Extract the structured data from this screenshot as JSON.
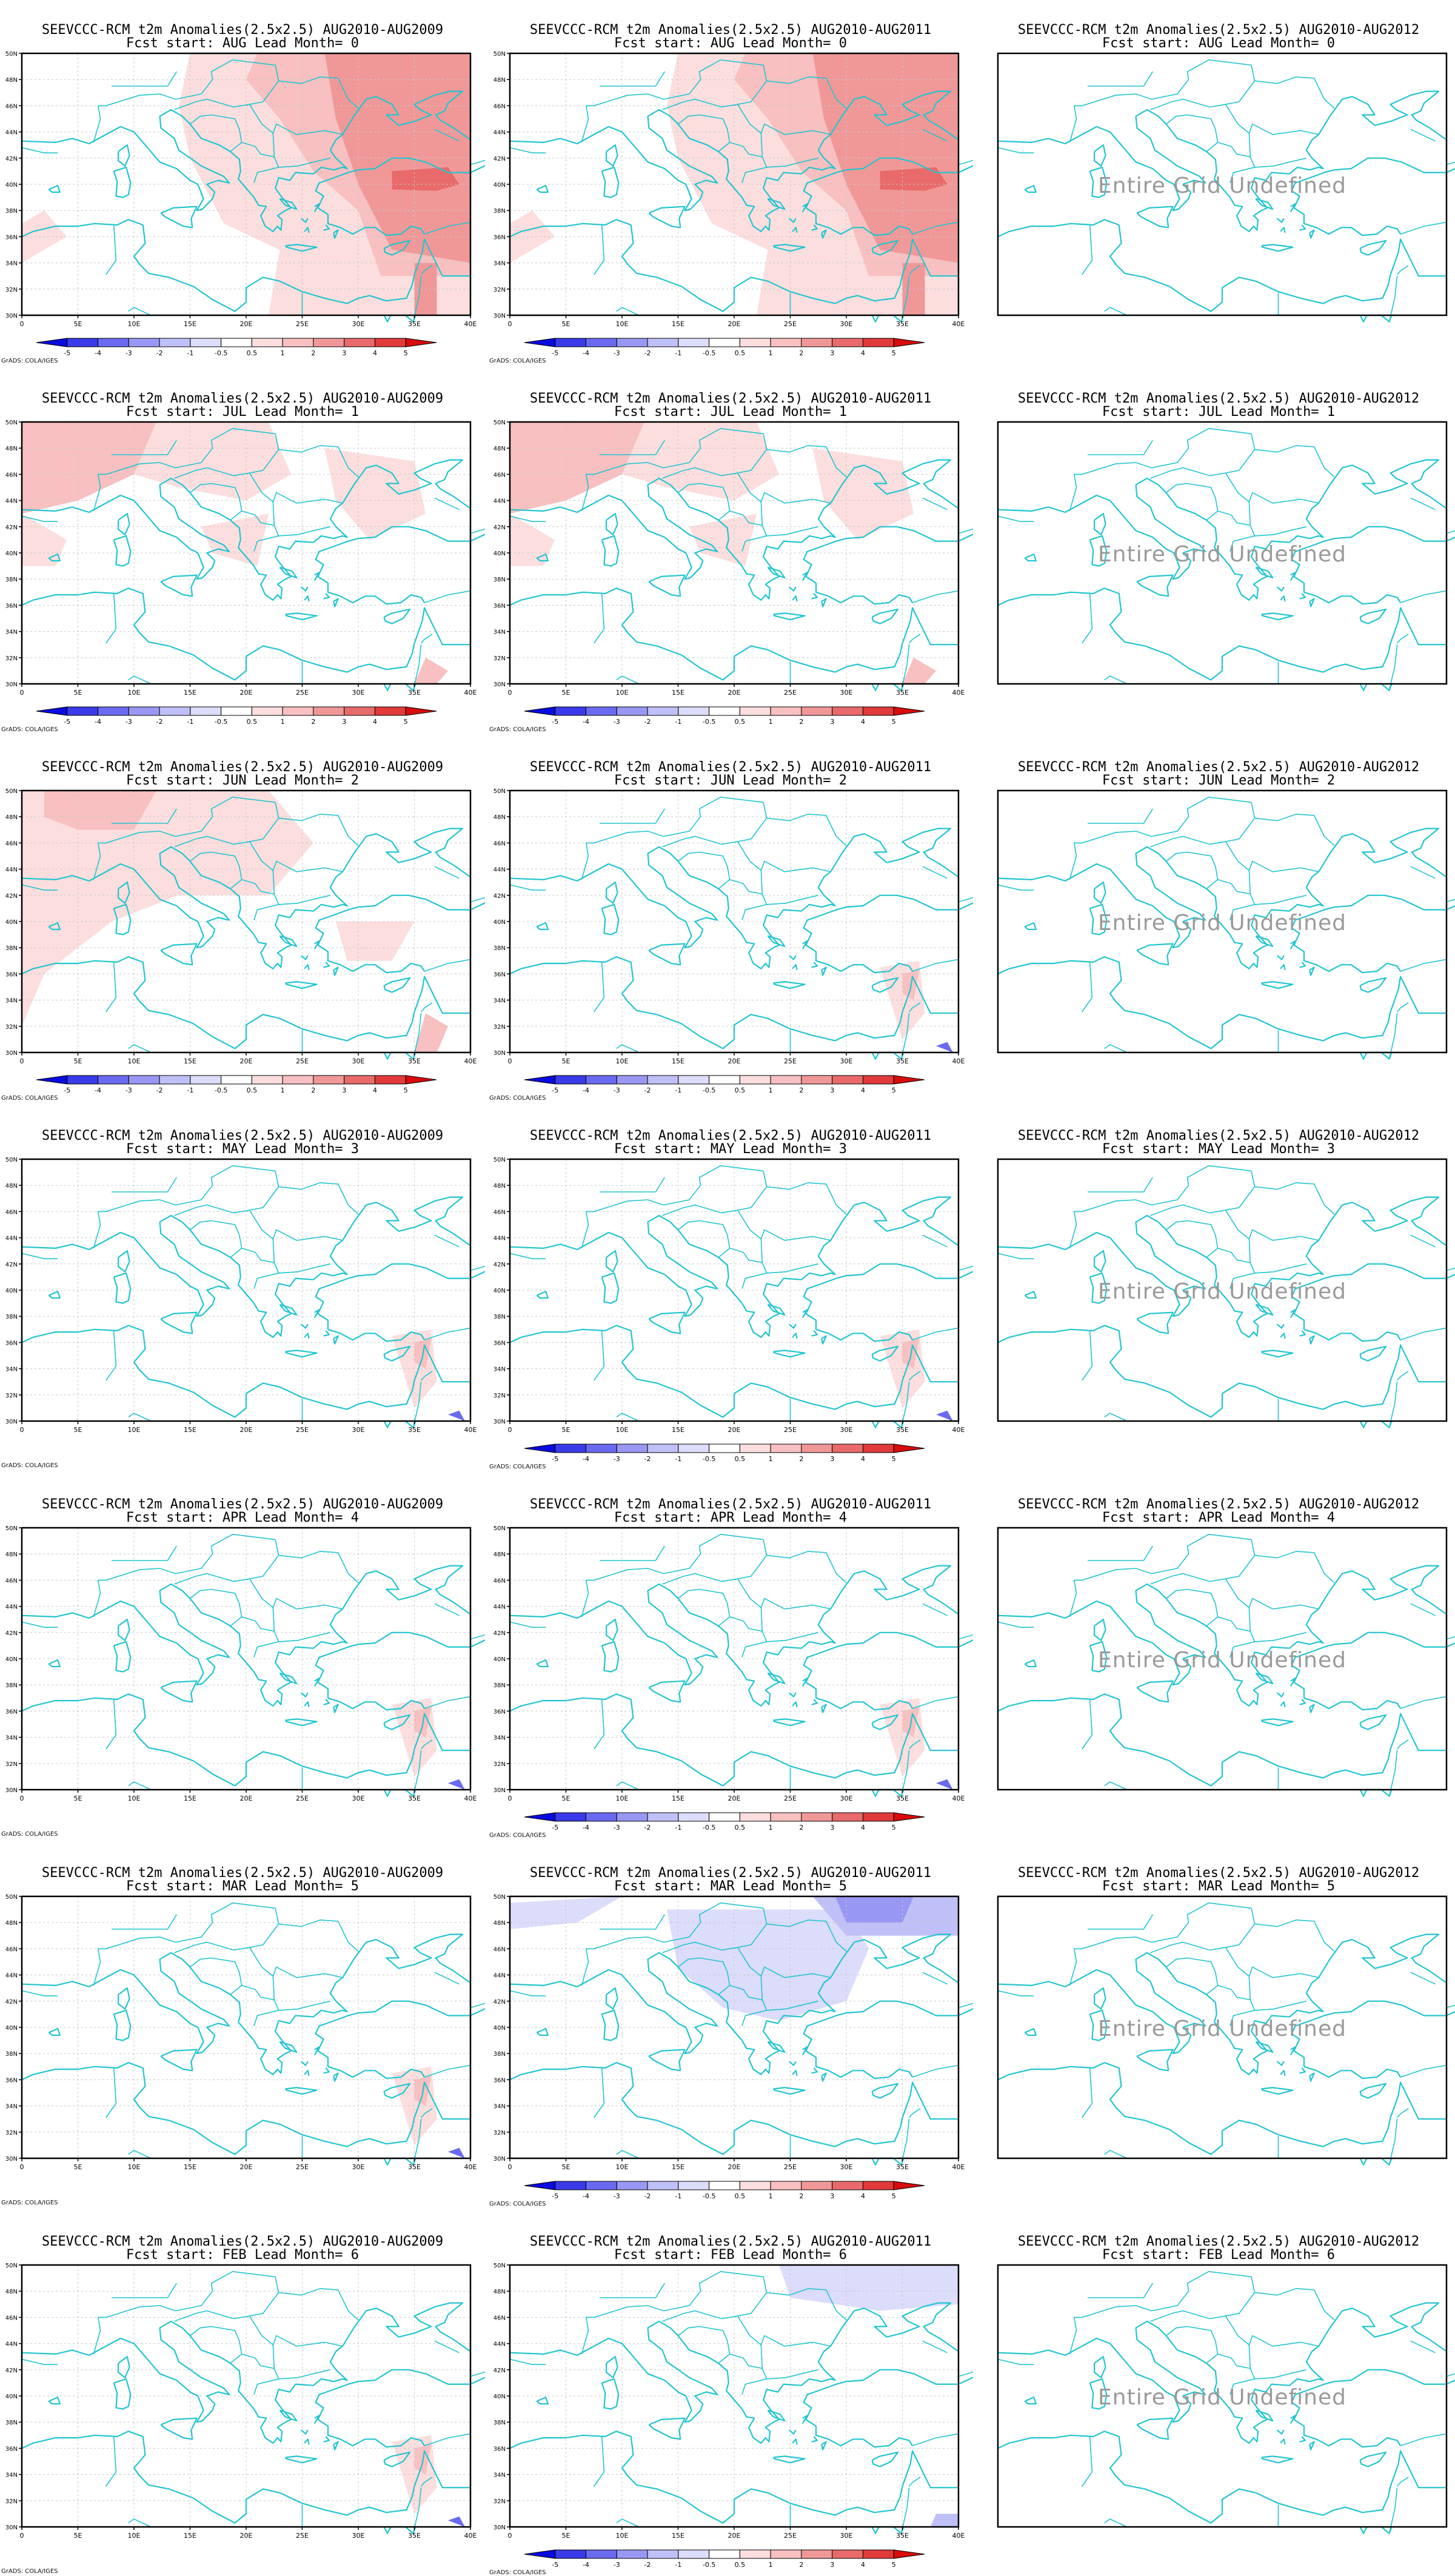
{
  "figure": {
    "model": "SEEVCCC-RCM t2m Anomalies(2.5x2.5)",
    "credit": "GrADS: COLA/IGES",
    "undefined_text": "Entire Grid Undefined",
    "columns": [
      "AUG2010-AUG2009",
      "AUG2010-AUG2011",
      "AUG2010-AUG2012"
    ],
    "rows": [
      {
        "label": "Fcst start: AUG  Lead Month= 0"
      },
      {
        "label": "Fcst start: JUL  Lead Month= 1"
      },
      {
        "label": "Fcst start: JUN  Lead Month= 2"
      },
      {
        "label": "Fcst start: MAY  Lead Month= 3"
      },
      {
        "label": "Fcst start: APR  Lead Month= 4"
      },
      {
        "label": "Fcst start: MAR  Lead Month= 5"
      },
      {
        "label": "Fcst start: FEB  Lead Month= 6"
      }
    ],
    "x_ticks": [
      "0",
      "5E",
      "10E",
      "15E",
      "20E",
      "25E",
      "30E",
      "35E",
      "40E"
    ],
    "y_ticks": [
      "50N",
      "48N",
      "46N",
      "44N",
      "42N",
      "40N",
      "38N",
      "36N",
      "34N",
      "32N",
      "30N"
    ],
    "colorbar": {
      "labels": [
        "-5",
        "-4",
        "-3",
        "-2",
        "-1",
        "-0.5",
        "0.5",
        "1",
        "2",
        "3",
        "4",
        "5"
      ],
      "colors": [
        "#0b0be0",
        "#3a3ae8",
        "#6a6af0",
        "#9898f4",
        "#c0c0f8",
        "#dcdcfb",
        "#ffffff",
        "#fcdede",
        "#f8c0c0",
        "#f09898",
        "#e86a6a",
        "#e03a3a",
        "#d80c0c"
      ]
    },
    "colorbar_visible": [
      [
        true,
        true,
        false
      ],
      [
        true,
        true,
        false
      ],
      [
        true,
        true,
        false
      ],
      [
        false,
        true,
        false
      ],
      [
        false,
        true,
        false
      ],
      [
        false,
        true,
        false
      ],
      [
        false,
        true,
        false
      ]
    ],
    "coast_color": "#22c5cf",
    "anomaly_level": [
      [
        "strong-warm",
        "strong-warm",
        "undefined"
      ],
      [
        "moderate-warm",
        "moderate-warm",
        "undefined"
      ],
      [
        "light-warm",
        "near-zero",
        "undefined"
      ],
      [
        "near-zero",
        "near-zero",
        "undefined"
      ],
      [
        "near-zero",
        "near-zero",
        "undefined"
      ],
      [
        "near-zero",
        "cool",
        "undefined"
      ],
      [
        "near-zero",
        "slight-cool",
        "undefined"
      ]
    ]
  }
}
